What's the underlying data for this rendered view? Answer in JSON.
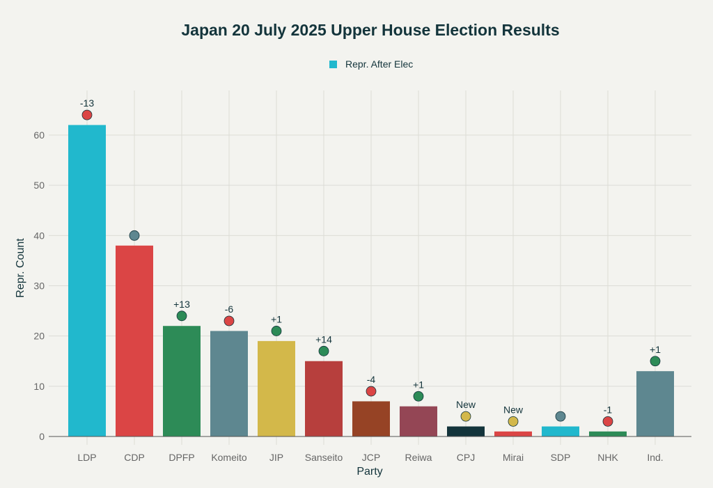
{
  "chart_data": {
    "type": "bar",
    "title": "Japan 20 July 2025 Upper House Election Results",
    "xlabel": "Party",
    "ylabel": "Repr. Count",
    "ylim": [
      0,
      64
    ],
    "yticks": [
      0,
      10,
      20,
      30,
      40,
      50,
      60
    ],
    "grid": true,
    "legend": {
      "position": "top-center",
      "entries": [
        {
          "name": "Repr. After Elec",
          "color": "#21b8cd"
        }
      ]
    },
    "categories": [
      "LDP",
      "CDP",
      "DPFP",
      "Komeito",
      "JIP",
      "Sanseito",
      "JCP",
      "Reiwa",
      "CPJ",
      "Mirai",
      "SDP",
      "NHK",
      "Ind."
    ],
    "series": [
      {
        "name": "Repr. After Elec",
        "values": [
          62,
          38,
          22,
          21,
          19,
          15,
          7,
          6,
          2,
          1,
          2,
          1,
          13
        ]
      }
    ],
    "bar_colors": [
      "#21b8cd",
      "#db4545",
      "#2d8b57",
      "#5e8790",
      "#d3b84a",
      "#b73f3d",
      "#964325",
      "#944655",
      "#13343b",
      "#db4545",
      "#21b8cd",
      "#2d8b57",
      "#5e8790"
    ],
    "change_markers": {
      "labels": [
        "-13",
        "",
        "+13",
        "-6",
        "+1",
        "+14",
        "-4",
        "+1",
        "New",
        "New",
        "",
        "-1",
        "+1"
      ],
      "colors": [
        "#db4545",
        "#5e8790",
        "#2d8b57",
        "#db4545",
        "#2d8b57",
        "#2d8b57",
        "#db4545",
        "#2d8b57",
        "#d3b84a",
        "#d3b84a",
        "#5e8790",
        "#db4545",
        "#2d8b57"
      ],
      "offset_above_bar": 2
    }
  }
}
